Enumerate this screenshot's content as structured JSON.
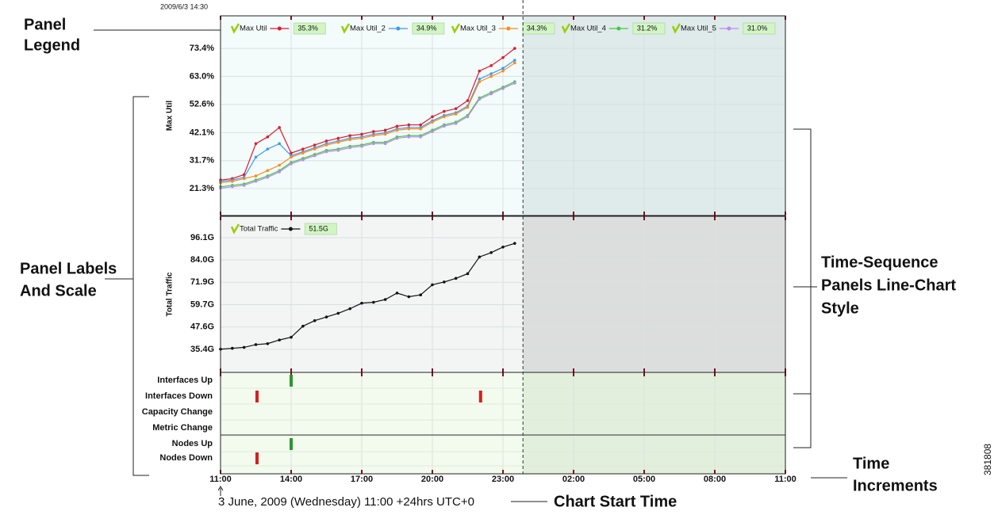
{
  "timestamp": "2009/6/3 14:30",
  "start_caption": "3 June, 2009 (Wednesday) 11:00 +24hrs UTC+0",
  "figure_id": "381808",
  "annotations": {
    "panel_legend": [
      "Panel",
      "Legend"
    ],
    "panel_labels": [
      "Panel Labels",
      "And Scale"
    ],
    "time_sequence": [
      "Time-Sequence",
      "Panels Line-Chart",
      "Style"
    ],
    "time_increments": [
      "Time",
      "Increments"
    ],
    "chart_start_time": "Chart Start Time"
  },
  "chart_data": [
    {
      "type": "line",
      "ylabel": "Max Util",
      "x": [
        0,
        0.5,
        1,
        1.5,
        2,
        2.5,
        3,
        3.5,
        4,
        4.5,
        5,
        5.5,
        6,
        6.5,
        7,
        7.5,
        8,
        8.5,
        9,
        9.5,
        10,
        10.5,
        11,
        11.5,
        12,
        12.5
      ],
      "xlim": [
        0,
        24
      ],
      "ylim": [
        11.3,
        85.5
      ],
      "grid": true,
      "yticks": [
        {
          "value": 21.3,
          "label": "21.3%"
        },
        {
          "value": 31.7,
          "label": "31.7%"
        },
        {
          "value": 42.1,
          "label": "42.1%"
        },
        {
          "value": 52.6,
          "label": "52.6%"
        },
        {
          "value": 63.0,
          "label": "63.0%"
        },
        {
          "value": 73.4,
          "label": "73.4%"
        }
      ],
      "series": [
        {
          "name": "Max Util",
          "color": "#e01a2a",
          "legend_value": "35.3%",
          "values": [
            24.5,
            25,
            26.5,
            38,
            40.5,
            44,
            34.5,
            36,
            37.5,
            39,
            40,
            41,
            41.5,
            42.5,
            43,
            44.5,
            45,
            45,
            48,
            50,
            51,
            54,
            65,
            67,
            70,
            73.4
          ]
        },
        {
          "name": "Max Util_2",
          "color": "#3a9af0",
          "legend_value": "34.9%",
          "values": [
            24,
            24.5,
            25.5,
            33,
            36,
            38,
            33.5,
            35,
            36.5,
            38,
            39,
            40,
            40.5,
            41.5,
            42,
            43.5,
            44,
            44,
            46.5,
            48.5,
            49.5,
            52,
            62,
            64,
            66,
            69
          ]
        },
        {
          "name": "Max Util_3",
          "color": "#ff8a1a",
          "legend_value": "34.3%",
          "values": [
            23.5,
            24,
            25,
            26,
            28,
            30,
            33,
            34.5,
            36,
            37.5,
            38.5,
            39.5,
            40,
            41,
            41.5,
            43,
            43.5,
            43.5,
            46,
            48,
            49,
            51.5,
            61,
            63,
            65,
            68
          ]
        },
        {
          "name": "Max Util_4",
          "color": "#44c844",
          "legend_value": "31.2%",
          "values": [
            22,
            22.5,
            23,
            24.5,
            26,
            28,
            31,
            32.5,
            34,
            35.5,
            36,
            37,
            37.5,
            38.5,
            38.5,
            40.5,
            41,
            41,
            43,
            45,
            46,
            48.5,
            55,
            57,
            59,
            61
          ]
        },
        {
          "name": "Max Util_5",
          "color": "#b68cee",
          "legend_value": "31.0%",
          "values": [
            21.5,
            22,
            22.5,
            24,
            25.5,
            27.5,
            30.5,
            32,
            33.5,
            35,
            35.5,
            36.5,
            37,
            38,
            38,
            40,
            40.5,
            40.5,
            42.5,
            44.5,
            45.5,
            48,
            54.5,
            56.5,
            58.5,
            60.5
          ]
        }
      ]
    },
    {
      "type": "line",
      "ylabel": "Total Traffic",
      "x": [
        0,
        0.5,
        1,
        1.5,
        2,
        2.5,
        3,
        3.5,
        4,
        4.5,
        5,
        5.5,
        6,
        6.5,
        7,
        7.5,
        8,
        8.5,
        9,
        9.5,
        10,
        10.5,
        11,
        11.5,
        12,
        12.5
      ],
      "xlim": [
        0,
        24
      ],
      "ylim": [
        22.9,
        107.7
      ],
      "grid": true,
      "yticks": [
        {
          "value": 35.4,
          "label": "35.4G"
        },
        {
          "value": 47.6,
          "label": "47.6G"
        },
        {
          "value": 59.7,
          "label": "59.7G"
        },
        {
          "value": 71.9,
          "label": "71.9G"
        },
        {
          "value": 84.0,
          "label": "84.0G"
        },
        {
          "value": 96.1,
          "label": "96.1G"
        }
      ],
      "series": [
        {
          "name": "Total Traffic",
          "color": "#111111",
          "legend_value": "51.5G",
          "values": [
            35.5,
            36,
            36.5,
            38,
            38.5,
            40.5,
            42,
            48,
            51,
            53,
            55,
            57.5,
            60.5,
            61,
            62.5,
            66,
            64,
            65,
            70.5,
            72,
            74,
            76.5,
            85.6,
            88,
            91,
            93
          ]
        }
      ]
    },
    {
      "type": "events",
      "xlim": [
        0,
        24
      ],
      "current_time": 12.85,
      "xticks": [
        {
          "value": 0,
          "label": "11:00"
        },
        {
          "value": 3,
          "label": "14:00"
        },
        {
          "value": 6,
          "label": "17:00"
        },
        {
          "value": 9,
          "label": "20:00"
        },
        {
          "value": 12,
          "label": "23:00"
        },
        {
          "value": 15,
          "label": "02:00"
        },
        {
          "value": 18,
          "label": "05:00"
        },
        {
          "value": 21,
          "label": "08:00"
        },
        {
          "value": 24,
          "label": "11:00"
        }
      ],
      "rows": [
        {
          "name": "Interfaces Up",
          "color": "#2a9a2a",
          "events": [
            3
          ]
        },
        {
          "name": "Interfaces Down",
          "color": "#d42020",
          "events": [
            1.55,
            11.05
          ]
        },
        {
          "name": "Capacity Change",
          "color": "#d42020",
          "events": []
        },
        {
          "name": "Metric Change",
          "color": "#d42020",
          "events": []
        },
        {
          "name": "Nodes Up",
          "color": "#2a9a2a",
          "events": [
            3
          ]
        },
        {
          "name": "Nodes Down",
          "color": "#d42020",
          "events": [
            1.55
          ]
        }
      ]
    }
  ]
}
